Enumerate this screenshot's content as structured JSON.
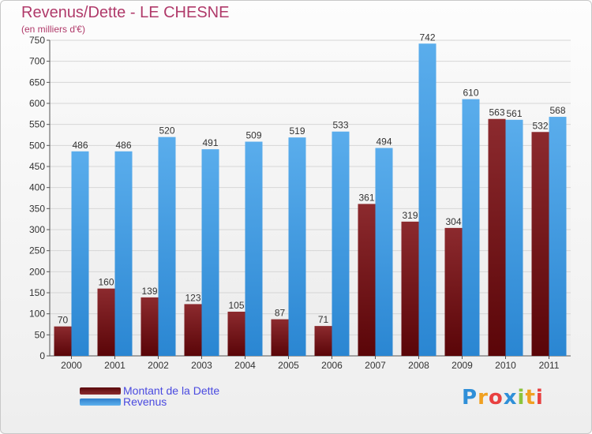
{
  "chart_data": {
    "type": "bar",
    "title": "Revenus/Dette - LE CHESNE",
    "subtitle": "(en milliers d'€)",
    "categories": [
      "2000",
      "2001",
      "2002",
      "2003",
      "2004",
      "2005",
      "2006",
      "2007",
      "2008",
      "2009",
      "2010",
      "2011"
    ],
    "series": [
      {
        "name": "Montant de la Dette",
        "color": "#7a1f22",
        "values": [
          70,
          160,
          139,
          123,
          105,
          87,
          71,
          361,
          319,
          304,
          563,
          532
        ]
      },
      {
        "name": "Revenus",
        "color": "#4aa3e6",
        "values": [
          486,
          486,
          520,
          491,
          509,
          519,
          533,
          494,
          742,
          610,
          561,
          568
        ]
      }
    ],
    "ylim": [
      0,
      750
    ],
    "yticks": [
      0,
      50,
      100,
      150,
      200,
      250,
      300,
      350,
      400,
      450,
      500,
      550,
      600,
      650,
      700,
      750
    ],
    "grid": true,
    "legend": "bottom-left",
    "xlabel": "",
    "ylabel": ""
  },
  "logo": {
    "text": "Proxiti",
    "letters": [
      "P",
      "r",
      "o",
      "x",
      "i",
      "t",
      "i"
    ],
    "colors": [
      "#2f8fd8",
      "#f0a020",
      "#e84040",
      "#2f8fd8",
      "#8cc43c",
      "#f0a020",
      "#e84040"
    ]
  }
}
